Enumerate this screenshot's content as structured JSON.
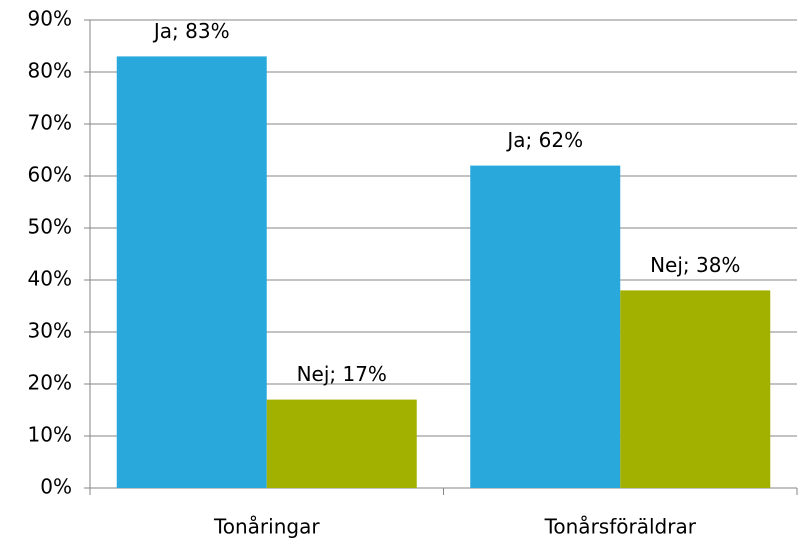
{
  "chart_data": {
    "type": "bar",
    "categories": [
      "Tonåringar",
      "Tonårsföräldrar"
    ],
    "series": [
      {
        "color": "#29a8dc",
        "values": [
          83,
          62
        ],
        "value_labels": [
          "Ja; 83%",
          "Ja; 62%"
        ]
      },
      {
        "color": "#a2b000",
        "values": [
          17,
          38
        ],
        "value_labels": [
          "Nej; 17%",
          "Nej; 38%"
        ]
      }
    ],
    "ylim": [
      0,
      90
    ],
    "yticks": [
      {
        "value": 0,
        "label": "0%"
      },
      {
        "value": 10,
        "label": "10%"
      },
      {
        "value": 20,
        "label": "20%"
      },
      {
        "value": 30,
        "label": "30%"
      },
      {
        "value": 40,
        "label": "40%"
      },
      {
        "value": 50,
        "label": "50%"
      },
      {
        "value": 60,
        "label": "60%"
      },
      {
        "value": 70,
        "label": "70%"
      },
      {
        "value": 80,
        "label": "80%"
      },
      {
        "value": 90,
        "label": "90%"
      }
    ],
    "grid": true
  }
}
